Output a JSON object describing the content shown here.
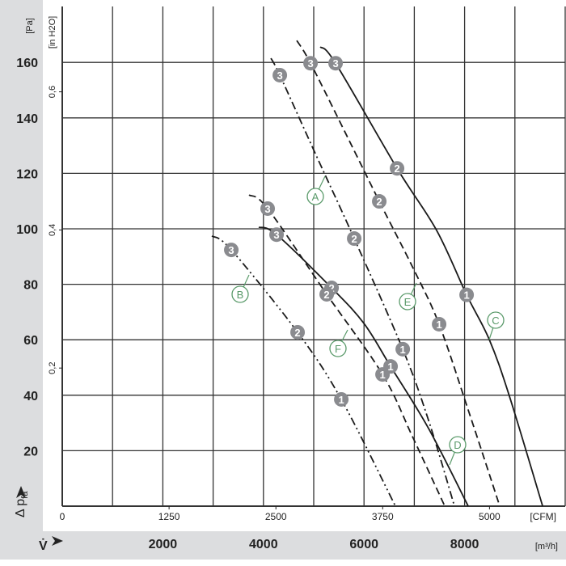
{
  "chart_data": {
    "type": "line",
    "title": "",
    "ylabel": "Δ p_fa",
    "ylabel_main": "Δ p",
    "ylabel_sub": "fa",
    "y_unit": "[Pa]",
    "y2_unit": "[in H2O]",
    "xlabel": "V̇",
    "x_unit": "[m³/h]",
    "x2_unit": "[CFM]",
    "xlim": [
      0,
      10000
    ],
    "ylim": [
      0,
      180
    ],
    "grid": true,
    "y_ticks": [
      "20",
      "40",
      "60",
      "80",
      "100",
      "120",
      "140",
      "160"
    ],
    "y_tick_values": [
      20,
      40,
      60,
      80,
      100,
      120,
      140,
      160
    ],
    "y2_ticks": [
      "0,2",
      "0,4",
      "0,6"
    ],
    "y2_tick_values_pa": [
      49.8,
      99.6,
      149.4
    ],
    "x_ticks": [
      "2000",
      "4000",
      "6000",
      "8000"
    ],
    "x_tick_values": [
      2000,
      4000,
      6000,
      8000
    ],
    "x2_ticks": [
      "0",
      "1250",
      "2500",
      "3750",
      "5000"
    ],
    "x2_tick_values_m3h": [
      0,
      2124,
      4248,
      6371,
      8495
    ],
    "series": [
      {
        "name": "A",
        "style": "dashdot",
        "points": [
          [
            4149,
            161.5
          ],
          [
            4326,
            155.4
          ],
          [
            5033,
            127.1
          ],
          [
            5805,
            96.5
          ],
          [
            6770,
            56.6
          ],
          [
            7284,
            30.9
          ],
          [
            7799,
            0
          ]
        ],
        "markers": [
          {
            "label": "3",
            "q": 4326,
            "p": 155.4
          },
          {
            "label": "2",
            "q": 5805,
            "p": 96.5
          },
          {
            "label": "1",
            "q": 6770,
            "p": 56.6
          }
        ]
      },
      {
        "name": "B",
        "style": "dashdotdot",
        "points": [
          [
            2975,
            97.4
          ],
          [
            3361,
            92.4
          ],
          [
            4679,
            62.7
          ],
          [
            5548,
            38.5
          ],
          [
            6625,
            0
          ]
        ],
        "markers": [
          {
            "label": "3",
            "q": 3361,
            "p": 92.4
          },
          {
            "label": "2",
            "q": 4679,
            "p": 62.7
          },
          {
            "label": "1",
            "q": 5548,
            "p": 38.5
          }
        ]
      },
      {
        "name": "C",
        "style": "solid",
        "points": [
          [
            5130,
            165.6
          ],
          [
            5435,
            159.7
          ],
          [
            6657,
            121.8
          ],
          [
            7445,
            99.4
          ],
          [
            8040,
            76.2
          ],
          [
            8490,
            60.1
          ],
          [
            8892,
            39.6
          ],
          [
            9552,
            0
          ]
        ],
        "markers": [
          {
            "label": "3",
            "q": 5435,
            "p": 159.7
          },
          {
            "label": "2",
            "q": 6657,
            "p": 121.8
          },
          {
            "label": "1",
            "q": 8040,
            "p": 76.2
          }
        ]
      },
      {
        "name": "D",
        "style": "solid",
        "points": [
          [
            3907,
            100.6
          ],
          [
            4261,
            97.9
          ],
          [
            5355,
            78.7
          ],
          [
            5998,
            65.9
          ],
          [
            6528,
            50.4
          ],
          [
            7284,
            28.0
          ],
          [
            8072,
            0
          ]
        ],
        "markers": [
          {
            "label": "3",
            "q": 4261,
            "p": 97.9
          },
          {
            "label": "2",
            "q": 5355,
            "p": 78.7
          },
          {
            "label": "1",
            "q": 6528,
            "p": 50.4
          }
        ]
      },
      {
        "name": "E",
        "style": "dashed",
        "points": [
          [
            4663,
            167.9
          ],
          [
            4937,
            159.7
          ],
          [
            5676,
            132.9
          ],
          [
            6303,
            109.9
          ],
          [
            6963,
            86.3
          ],
          [
            7493,
            65.6
          ],
          [
            8088,
            33.8
          ],
          [
            8699,
            0
          ]
        ],
        "markers": [
          {
            "label": "3",
            "q": 4937,
            "p": 159.7
          },
          {
            "label": "2",
            "q": 6303,
            "p": 109.9
          },
          {
            "label": "1",
            "q": 7493,
            "p": 65.6
          }
        ]
      },
      {
        "name": "F",
        "style": "dashed",
        "points": [
          [
            3714,
            112.2
          ],
          [
            4084,
            107.3
          ],
          [
            5258,
            76.4
          ],
          [
            6368,
            47.5
          ],
          [
            6963,
            25.1
          ],
          [
            7606,
            0
          ]
        ],
        "markers": [
          {
            "label": "3",
            "q": 4084,
            "p": 107.3
          },
          {
            "label": "2",
            "q": 5258,
            "p": 76.4
          },
          {
            "label": "1",
            "q": 6368,
            "p": 47.5
          }
        ]
      }
    ]
  },
  "colors": {
    "curve": "#1a1a1a",
    "grid": "#333333",
    "marker": "#8a8b8f",
    "label": "#5a9a6a",
    "band": "#dcdddf"
  }
}
